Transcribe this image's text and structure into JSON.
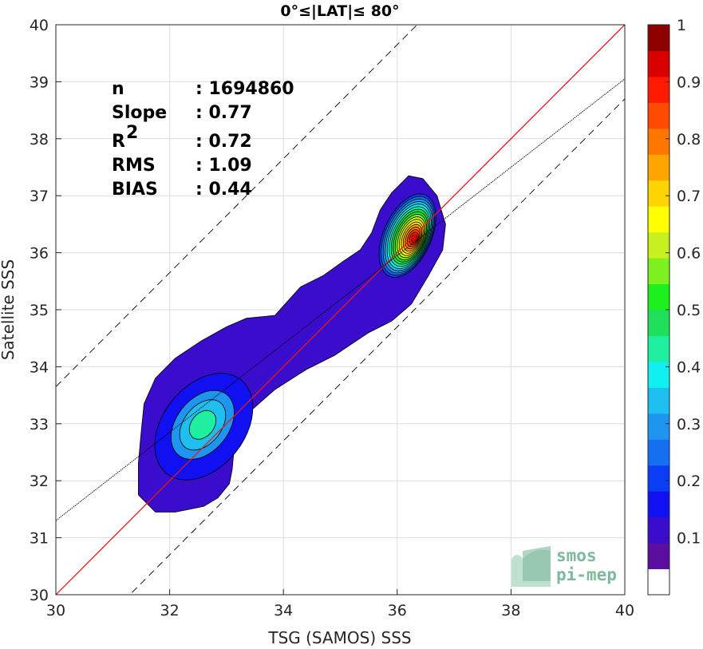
{
  "chart_data": {
    "type": "contour",
    "title": "0°≤|LAT|≤ 80°",
    "xlabel": "TSG (SAMOS) SSS",
    "ylabel": "Satellite SSS",
    "xlim": [
      30,
      40
    ],
    "ylim": [
      30,
      40
    ],
    "xticks": [
      30,
      32,
      34,
      36,
      38,
      40
    ],
    "yticks": [
      30,
      31,
      32,
      33,
      34,
      35,
      36,
      37,
      38,
      39,
      40
    ],
    "grid": true,
    "stats": [
      {
        "label": "n",
        "sep": ": ",
        "value": "1694860"
      },
      {
        "label": "Slope",
        "sep": ": ",
        "value": "0.77"
      },
      {
        "label": "R",
        "sup": "2",
        "sep": ": ",
        "value": "0.72"
      },
      {
        "label": "RMS",
        "sep": ": ",
        "value": "1.09"
      },
      {
        "label": "BIAS",
        "sep": ": ",
        "value": "0.44"
      }
    ],
    "lines": [
      {
        "kind": "identity",
        "color": "#e41a1c",
        "x": [
          30,
          40
        ],
        "y": [
          30,
          40
        ]
      },
      {
        "kind": "regression",
        "color": "#000000",
        "x": [
          30,
          40
        ],
        "y": [
          31.3,
          39.05
        ]
      },
      {
        "kind": "upper-bound",
        "color": "#000000",
        "dash": true,
        "x": [
          30,
          40
        ],
        "y": [
          33.65,
          43.65
        ]
      },
      {
        "kind": "lower-bound",
        "color": "#000000",
        "dash": true,
        "x": [
          30,
          40
        ],
        "y": [
          28.7,
          38.7
        ]
      }
    ],
    "density_peaks": [
      {
        "x": 36.3,
        "y": 36.25,
        "value": 1.0
      },
      {
        "x": 32.6,
        "y": 33.0,
        "value": 0.45
      }
    ],
    "colorbar": {
      "range": [
        0,
        1
      ],
      "ticks": [
        "0.1",
        "0.2",
        "0.3",
        "0.4",
        "0.5",
        "0.6",
        "0.7",
        "0.8",
        "0.9",
        "1"
      ],
      "levels": [
        0,
        0.05,
        0.1,
        0.15,
        0.2,
        0.25,
        0.3,
        0.35,
        0.4,
        0.45,
        0.5,
        0.55,
        0.6,
        0.65,
        0.7,
        0.75,
        0.8,
        0.85,
        0.9,
        0.95,
        1.0
      ],
      "colors": [
        "#ffffff",
        "#5a0fa0",
        "#3a0ccc",
        "#1010f0",
        "#0a3ef5",
        "#1470f0",
        "#1e96f0",
        "#1ebeee",
        "#10f0f0",
        "#1ef0a0",
        "#1ee05a",
        "#1ef01e",
        "#7ef01e",
        "#c8f01e",
        "#ffff00",
        "#ffd400",
        "#ffa500",
        "#ff7700",
        "#ff4a00",
        "#ff1a00",
        "#d80000",
        "#8c0000"
      ]
    },
    "contour_colors": [
      "#3a0ccc",
      "#1010f0",
      "#0a3ef5",
      "#1470f0",
      "#1e96f0",
      "#1ebeee",
      "#10f0f0",
      "#1ef0a0",
      "#1ee05a",
      "#1ef01e",
      "#7ef01e",
      "#c8f01e",
      "#ffff00",
      "#ffd400",
      "#ffa500",
      "#ff7700",
      "#ff4a00",
      "#ff1a00",
      "#d80000"
    ]
  },
  "logo": {
    "line1": "smos",
    "line2": "pi-mep"
  }
}
